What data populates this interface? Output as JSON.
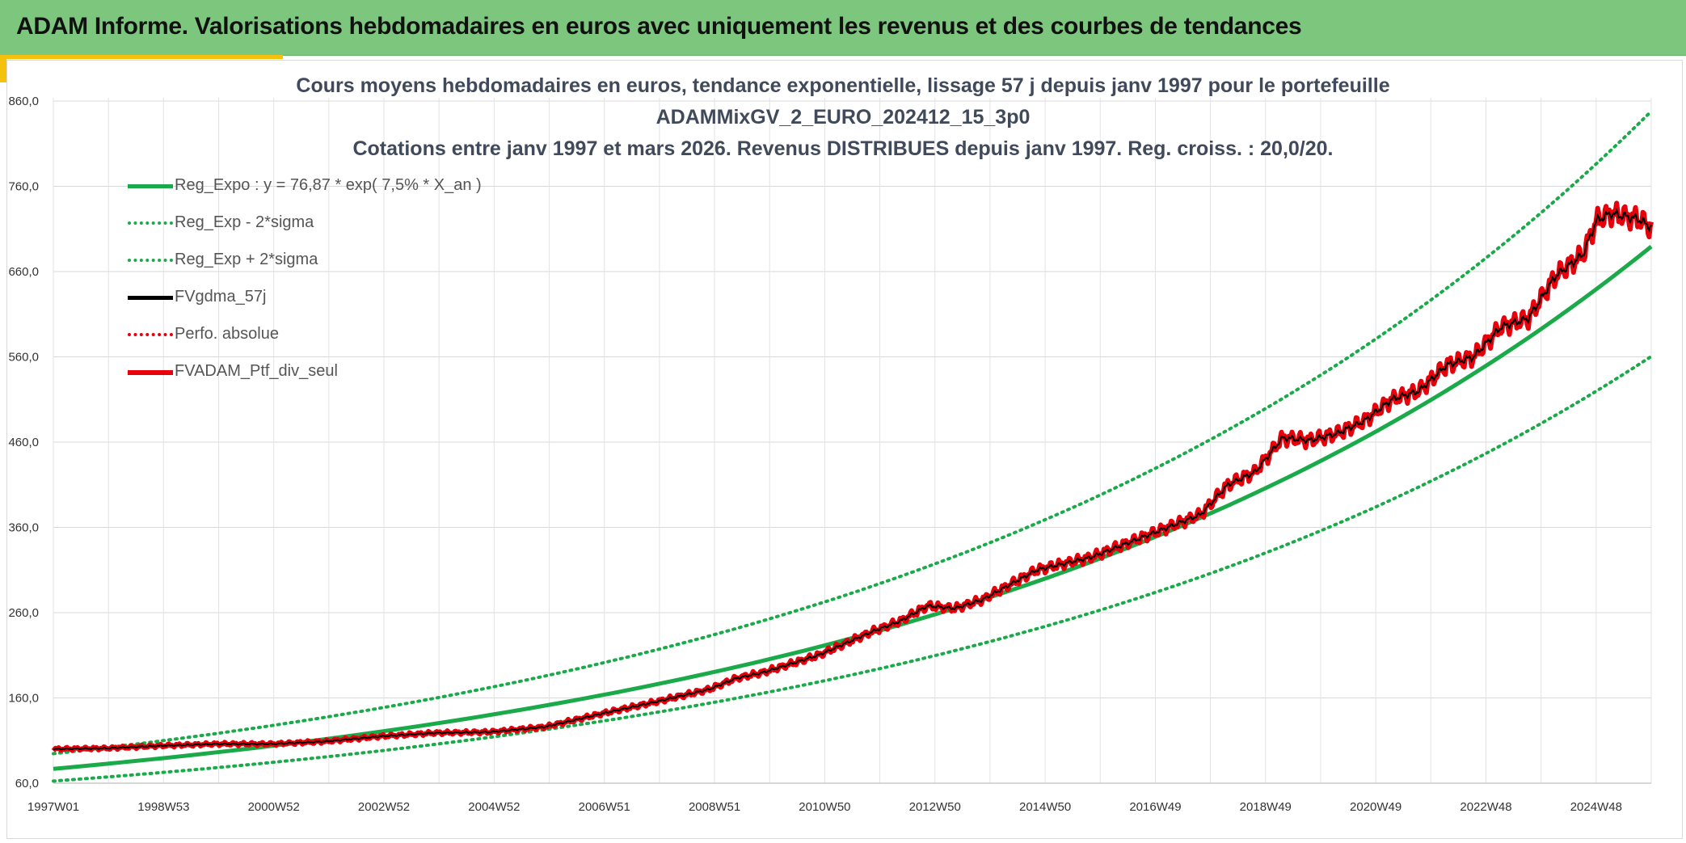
{
  "header": {
    "title": "ADAM Informe. Valorisations hebdomadaires en euros avec uniquement les revenus et des courbes de tendances"
  },
  "chart_data": {
    "type": "line",
    "title_lines": [
      "Cours moyens hebdomadaires en euros, tendance exponentielle, lissage 57 j depuis janv 1997 pour le portefeuille",
      "ADAMMixGV_2_EURO_202412_15_3p0",
      "Cotations entre janv 1997 et mars 2026. Revenus DISTRIBUES depuis janv 1997. Reg. croiss. : 20,0/20."
    ],
    "x_start": 1997.0,
    "x_end": 2026.25,
    "x_tick_labels": [
      "1997W01",
      "1998W53",
      "2000W52",
      "2002W52",
      "2004W52",
      "2006W51",
      "2008W51",
      "2010W50",
      "2012W50",
      "2014W50",
      "2016W49",
      "2018W49",
      "2020W49",
      "2022W48",
      "2024W48"
    ],
    "ylim": [
      60,
      860
    ],
    "y_tick_labels": [
      "60,0",
      "160,0",
      "260,0",
      "360,0",
      "460,0",
      "560,0",
      "660,0",
      "760,0",
      "860,0"
    ],
    "grid": true,
    "legend_position": "top-left",
    "regression": {
      "a": 76.87,
      "rate": 0.075,
      "sigma_factor": 1.23
    },
    "series": [
      {
        "name": "Reg_Expo : y = 76,87 * exp( 7,5% *  X_an )",
        "style": "solid",
        "color": "#1aaa4a"
      },
      {
        "name": "Reg_Exp - 2*sigma",
        "style": "dotted",
        "color": "#1aaa4a"
      },
      {
        "name": "Reg_Exp + 2*sigma",
        "style": "dotted",
        "color": "#1aaa4a"
      },
      {
        "name": "FVgdma_57j",
        "style": "solid",
        "color": "#000000"
      },
      {
        "name": "Perfo. absolue",
        "style": "dotted",
        "color": "#e8000b"
      },
      {
        "name": "FVADAM_Ptf_div_seul",
        "style": "solid",
        "color": "#e8000b",
        "points": [
          [
            1997.0,
            100
          ],
          [
            1998.0,
            101
          ],
          [
            1999.0,
            104
          ],
          [
            2000.0,
            106
          ],
          [
            2001.0,
            106
          ],
          [
            2002.0,
            109
          ],
          [
            2003.0,
            115
          ],
          [
            2004.0,
            119
          ],
          [
            2005.0,
            120
          ],
          [
            2006.0,
            126
          ],
          [
            2007.0,
            141
          ],
          [
            2008.0,
            155
          ],
          [
            2009.0,
            170
          ],
          [
            2009.5,
            183
          ],
          [
            2010.0,
            190
          ],
          [
            2011.0,
            210
          ],
          [
            2012.0,
            238
          ],
          [
            2012.5,
            250
          ],
          [
            2013.0,
            268
          ],
          [
            2013.5,
            265
          ],
          [
            2014.0,
            275
          ],
          [
            2015.0,
            310
          ],
          [
            2016.0,
            325
          ],
          [
            2017.0,
            350
          ],
          [
            2018.0,
            375
          ],
          [
            2018.5,
            410
          ],
          [
            2019.0,
            425
          ],
          [
            2019.5,
            465
          ],
          [
            2020.0,
            462
          ],
          [
            2020.5,
            470
          ],
          [
            2021.0,
            485
          ],
          [
            2021.5,
            510
          ],
          [
            2022.0,
            520
          ],
          [
            2022.5,
            550
          ],
          [
            2023.0,
            560
          ],
          [
            2023.5,
            595
          ],
          [
            2024.0,
            605
          ],
          [
            2024.5,
            655
          ],
          [
            2025.0,
            680
          ],
          [
            2025.25,
            720
          ],
          [
            2025.5,
            728
          ],
          [
            2025.75,
            725
          ],
          [
            2026.0,
            722
          ],
          [
            2026.25,
            712
          ]
        ]
      }
    ]
  }
}
